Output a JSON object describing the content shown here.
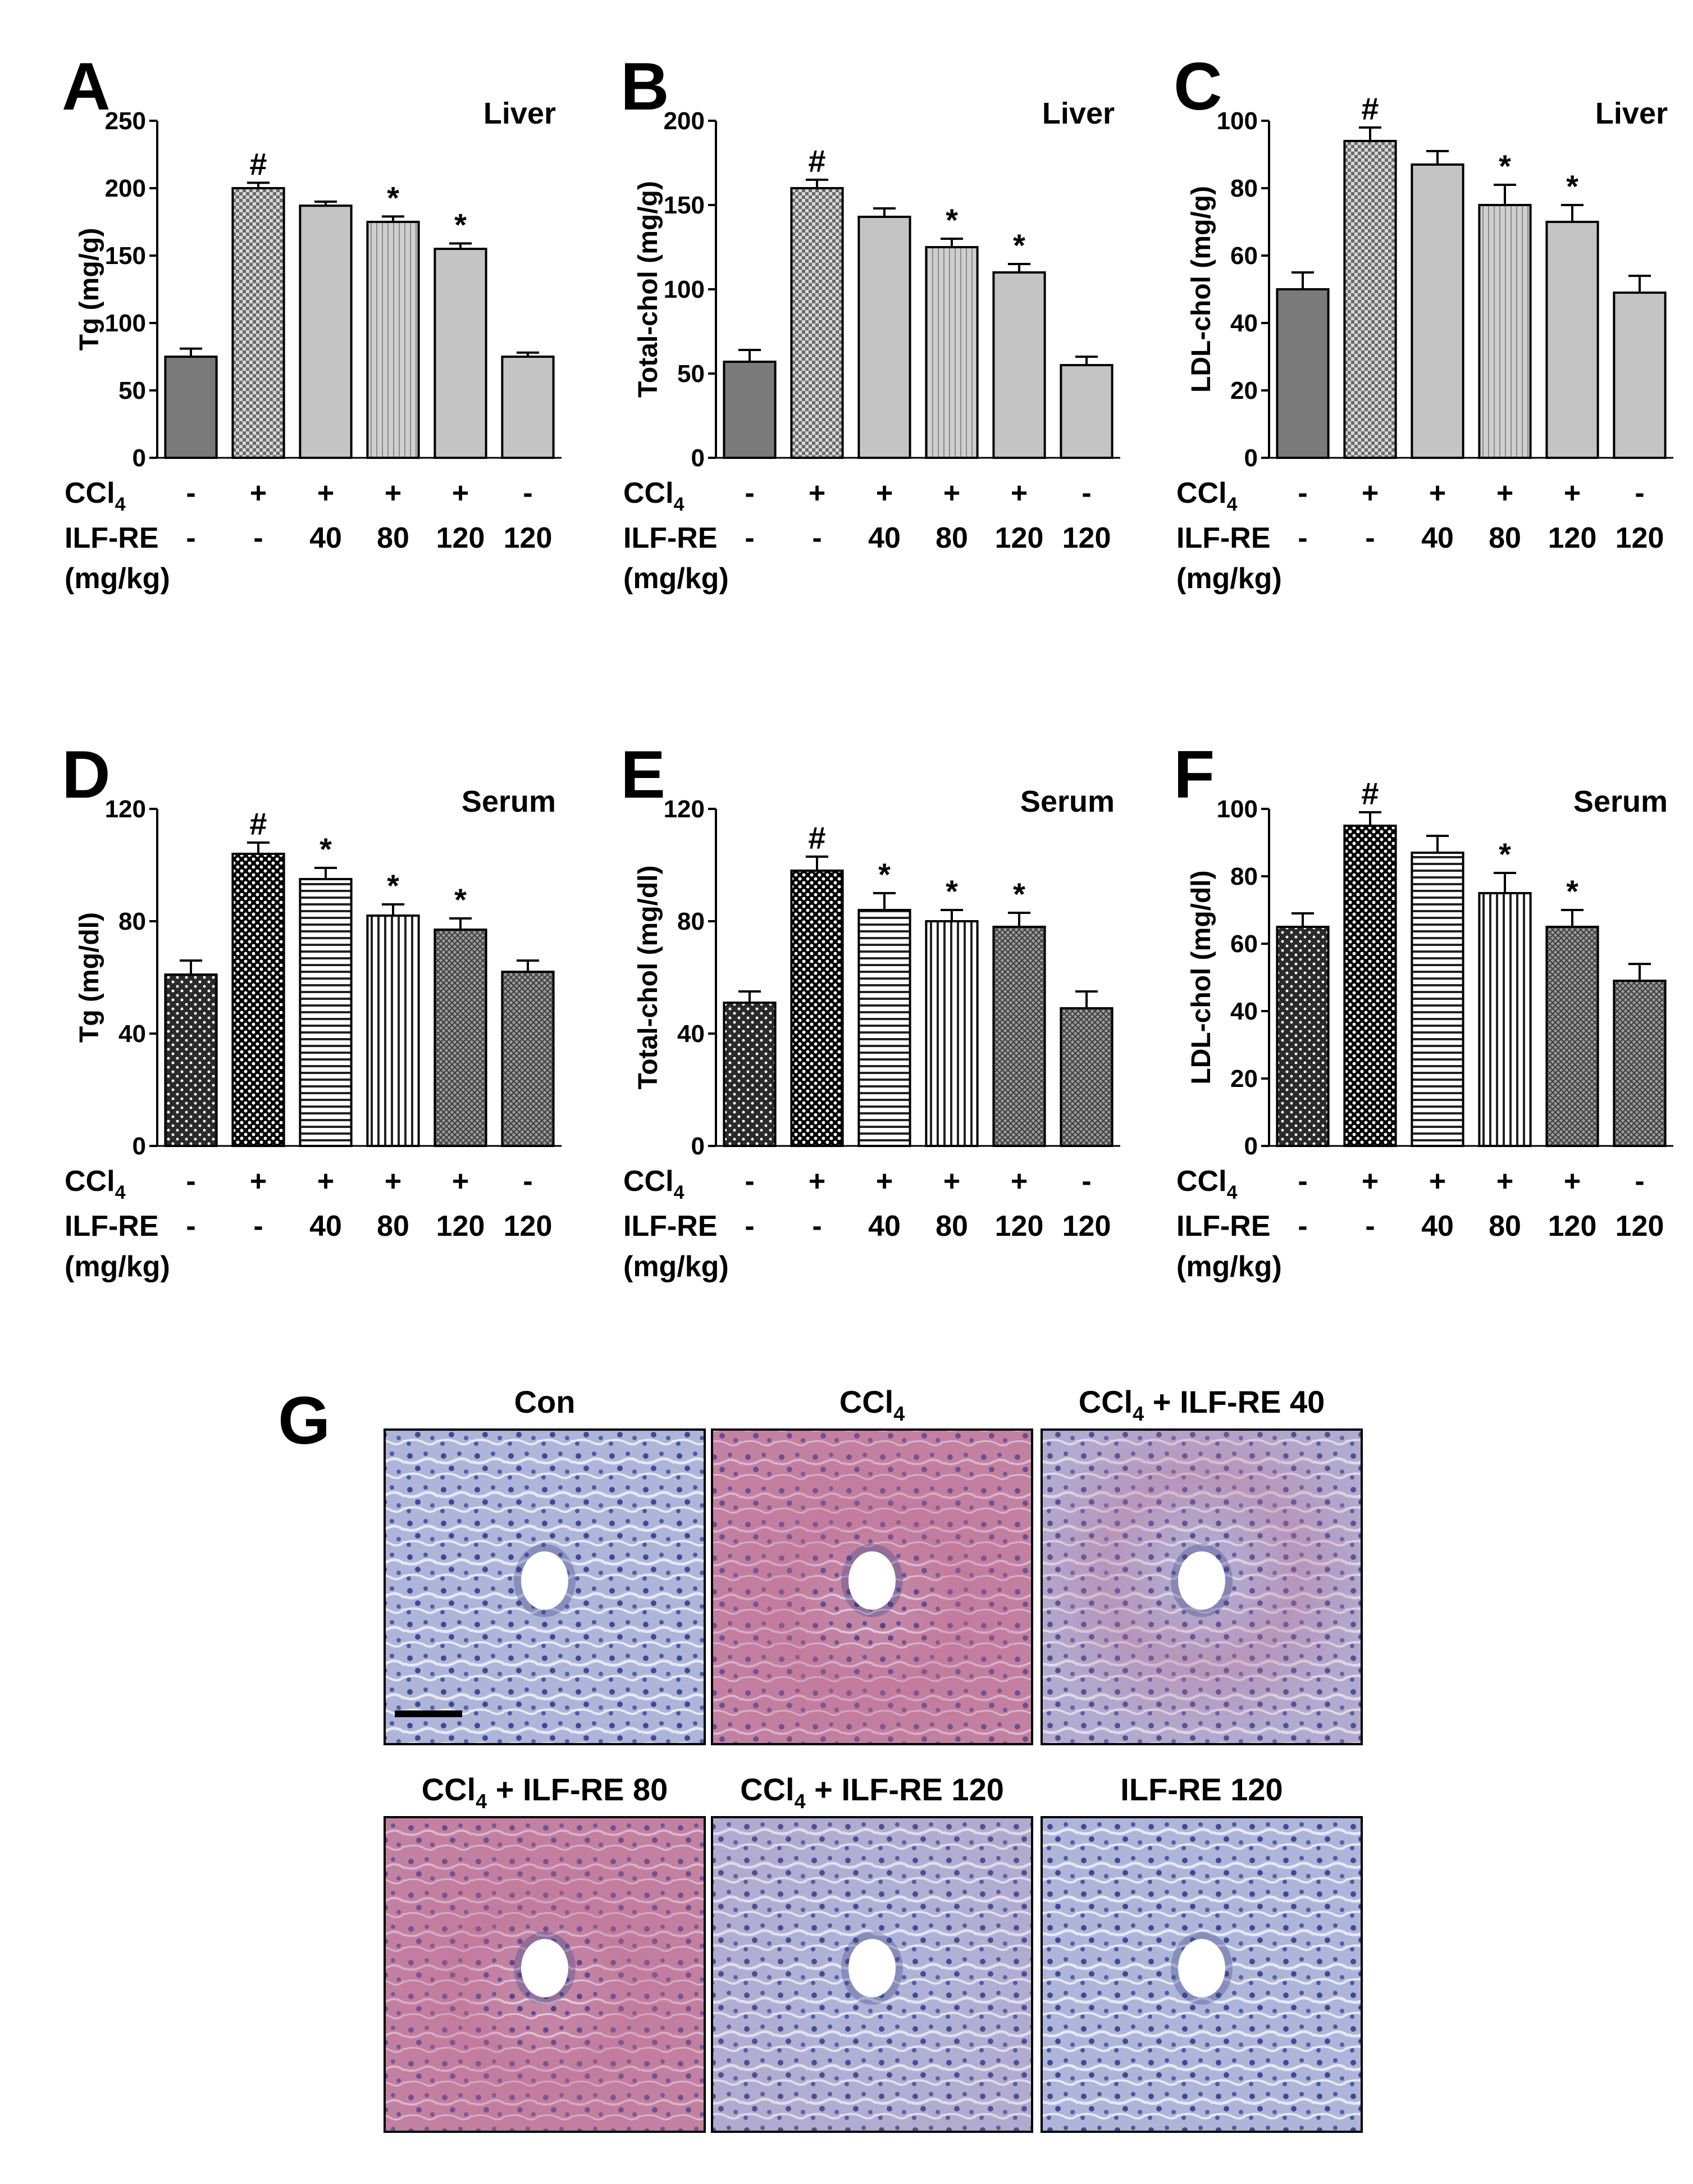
{
  "figure": {
    "condition_labels": {
      "ccl4": "CCl",
      "ccl4_sub": "4",
      "ilf": "ILF-RE",
      "units": "(mg/kg)"
    },
    "ccl4_row": [
      "-",
      "+",
      "+",
      "+",
      "+",
      "-"
    ],
    "ilf_row": [
      "-",
      "-",
      "40",
      "80",
      "120",
      "120"
    ]
  },
  "colors": {
    "dark_gray": "#7a7a7a",
    "light_gray": "#c4c4c4",
    "black": "#000000"
  },
  "patterns": {
    "liver": [
      "solid-dark",
      "checker",
      "solid-light",
      "vline-light",
      "solid-light",
      "solid-light"
    ],
    "serum": [
      "dots",
      "dense-dots",
      "hlines",
      "vlines",
      "crosshatch",
      "crosshatch"
    ]
  },
  "chart_data": [
    {
      "panel": "A",
      "type": "bar",
      "title": "Liver",
      "ylabel": "Tg (mg/g)",
      "ylim": [
        0,
        250
      ],
      "yticks": [
        "0",
        "50",
        "100",
        "150",
        "200",
        "250"
      ],
      "values": [
        75,
        200,
        187,
        175,
        155,
        75
      ],
      "errors": [
        6,
        4,
        3,
        4,
        4,
        3
      ],
      "annotations": [
        "",
        "#",
        "",
        "*",
        "*",
        ""
      ],
      "tissue": "liver"
    },
    {
      "panel": "B",
      "type": "bar",
      "title": "Liver",
      "ylabel": "Total-chol (mg/g)",
      "ylim": [
        0,
        200
      ],
      "yticks": [
        "0",
        "50",
        "100",
        "150",
        "200"
      ],
      "values": [
        57,
        160,
        143,
        125,
        110,
        55
      ],
      "errors": [
        7,
        5,
        5,
        5,
        5,
        5
      ],
      "annotations": [
        "",
        "#",
        "",
        "*",
        "*",
        ""
      ],
      "tissue": "liver"
    },
    {
      "panel": "C",
      "type": "bar",
      "title": "Liver",
      "ylabel": "LDL-chol (mg/g)",
      "ylim": [
        0,
        100
      ],
      "yticks": [
        "0",
        "20",
        "40",
        "60",
        "80",
        "100"
      ],
      "values": [
        50,
        94,
        87,
        75,
        70,
        49
      ],
      "errors": [
        5,
        4,
        4,
        6,
        5,
        5
      ],
      "annotations": [
        "",
        "#",
        "",
        "*",
        "*",
        ""
      ],
      "tissue": "liver"
    },
    {
      "panel": "D",
      "type": "bar",
      "title": "Serum",
      "ylabel": "Tg (mg/dl)",
      "ylim": [
        0,
        120
      ],
      "yticks": [
        "0",
        "40",
        "80",
        "120"
      ],
      "values": [
        61,
        104,
        95,
        82,
        77,
        62
      ],
      "errors": [
        5,
        4,
        4,
        4,
        4,
        4
      ],
      "annotations": [
        "",
        "#",
        "*",
        "*",
        "*",
        ""
      ],
      "tissue": "serum"
    },
    {
      "panel": "E",
      "type": "bar",
      "title": "Serum",
      "ylabel": "Total-chol (mg/dl)",
      "ylim": [
        0,
        120
      ],
      "yticks": [
        "0",
        "40",
        "80",
        "120"
      ],
      "values": [
        51,
        98,
        84,
        80,
        78,
        49
      ],
      "errors": [
        4,
        5,
        6,
        4,
        5,
        6
      ],
      "annotations": [
        "",
        "#",
        "*",
        "*",
        "*",
        ""
      ],
      "tissue": "serum"
    },
    {
      "panel": "F",
      "type": "bar",
      "title": "Serum",
      "ylabel": "LDL-chol (mg/dl)",
      "ylim": [
        0,
        100
      ],
      "yticks": [
        "0",
        "20",
        "40",
        "60",
        "80",
        "100"
      ],
      "values": [
        65,
        95,
        87,
        75,
        65,
        49
      ],
      "errors": [
        4,
        4,
        5,
        6,
        5,
        5
      ],
      "annotations": [
        "",
        "#",
        "",
        "*",
        "*",
        ""
      ],
      "tissue": "serum"
    }
  ],
  "micrographs": {
    "letter": "G",
    "panels": [
      {
        "title": "Con",
        "title_sub": "",
        "title_rest": "",
        "tint": "none"
      },
      {
        "title": "CCl",
        "title_sub": "4",
        "title_rest": "",
        "tint": "strong"
      },
      {
        "title": "CCl",
        "title_sub": "4",
        "title_rest": " + ILF-RE 40",
        "tint": "medium"
      },
      {
        "title": "CCl",
        "title_sub": "4",
        "title_rest": " + ILF-RE 80",
        "tint": "strong"
      },
      {
        "title": "CCl",
        "title_sub": "4",
        "title_rest": " + ILF-RE 120",
        "tint": "light"
      },
      {
        "title": "ILF-RE 120",
        "title_sub": "",
        "title_rest": "",
        "tint": "none"
      }
    ]
  }
}
